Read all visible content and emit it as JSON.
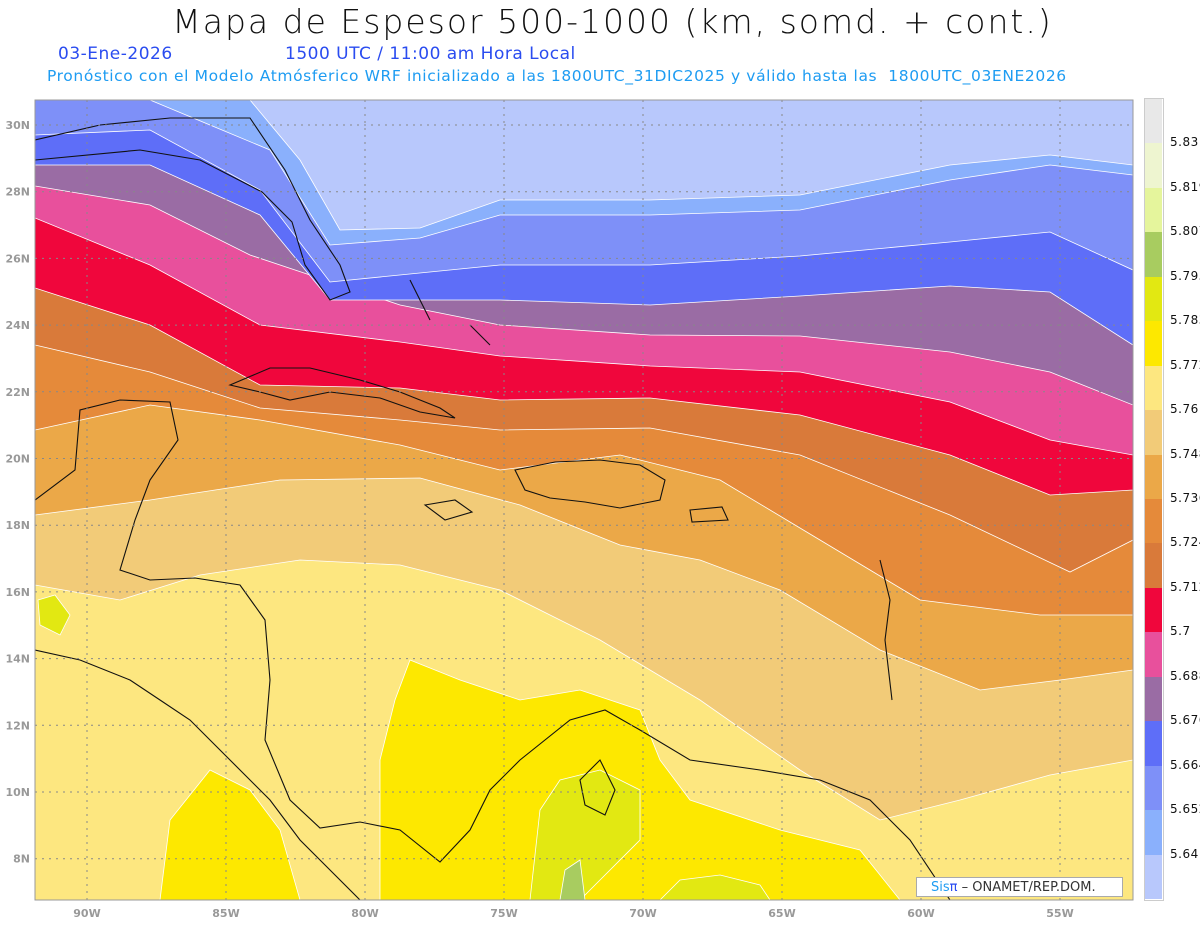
{
  "header": {
    "title": "Mapa de Espesor 500-1000 (km, somd. + cont.)",
    "date": "03-Ene-2026",
    "time": "1500 UTC / 11:00 am Hora Local",
    "model_info": "Pronóstico con el Modelo Atmósferico WRF inicializado a las 1800UTC_31DIC2025 y válido hasta las  1800UTC_03ENE2026"
  },
  "axes": {
    "lat_labels": [
      "30N",
      "28N",
      "26N",
      "24N",
      "22N",
      "20N",
      "18N",
      "16N",
      "14N",
      "12N",
      "10N",
      "8N"
    ],
    "lon_labels": [
      "90W",
      "85W",
      "80W",
      "75W",
      "70W",
      "65W",
      "60W",
      "55W"
    ]
  },
  "colorbar": {
    "levels": [
      "5.831",
      "5.819",
      "5.807",
      "5.795",
      "5.783",
      "5.772",
      "5.76",
      "5.748",
      "5.736",
      "5.724",
      "5.712",
      "5.7",
      "5.688",
      "5.676",
      "5.664",
      "5.652",
      "5.64"
    ],
    "colors": [
      "#e8e8e8",
      "#eef5d0",
      "#e5f59c",
      "#a8cc60",
      "#e2e812",
      "#fde800",
      "#fde780",
      "#f2cb78",
      "#eba848",
      "#e58a3a",
      "#d97a3a",
      "#f0063c",
      "#e8509c",
      "#9a6ca4",
      "#5e6ef8",
      "#7e90f8",
      "#8ab0fc",
      "#b8c8fc"
    ]
  },
  "credit": {
    "sis": "Sis",
    "pi": "π",
    "text": " – ONAMET/REP.DOM."
  }
}
